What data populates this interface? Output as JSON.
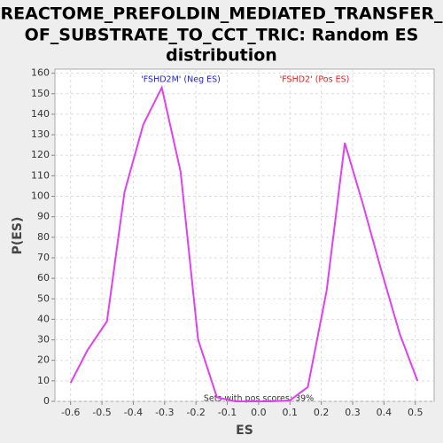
{
  "chart_data": {
    "type": "line",
    "title": [
      "REACTOME_PREFOLDIN_MEDIATED_TRANSFER_",
      "OF_SUBSTRATE_TO_CCT_TRIC: Random ES",
      "distribution"
    ],
    "x_label": "ES",
    "y_label": "P(ES)",
    "annotations": [
      {
        "text": "'FSHD2M' (Neg ES)",
        "color": "#2222cc"
      },
      {
        "text": "'FSHD2' (Pos ES)",
        "color": "#dd2222"
      },
      {
        "text": "Sets with pos scores: 39%",
        "color": "#333333"
      }
    ],
    "x": [
      -0.6,
      -0.546,
      -0.484,
      -0.428,
      -0.368,
      -0.309,
      -0.249,
      -0.193,
      -0.133,
      -0.074,
      -0.015,
      0.04,
      0.1,
      0.157,
      0.217,
      0.275,
      0.333,
      0.393,
      0.45,
      0.507
    ],
    "series": [
      {
        "color": "#e040f0",
        "values": [
          9,
          25,
          39,
          102,
          135,
          153,
          112,
          30,
          2,
          0,
          0,
          0,
          0.5,
          7,
          54,
          126,
          96,
          63,
          33,
          10
        ]
      }
    ],
    "xlim": [
      -0.65,
      0.56
    ],
    "ylim": [
      0,
      162
    ],
    "xticks": [
      -0.6,
      -0.5,
      -0.4,
      -0.3,
      -0.2,
      -0.1,
      {
        "value": 0,
        "label": "0.0"
      },
      0.1,
      0.2,
      0.3,
      0.4,
      0.5
    ],
    "yticks": [
      0,
      10,
      20,
      30,
      40,
      50,
      60,
      70,
      80,
      90,
      100,
      110,
      120,
      130,
      140,
      150,
      160
    ],
    "grid": true
  }
}
